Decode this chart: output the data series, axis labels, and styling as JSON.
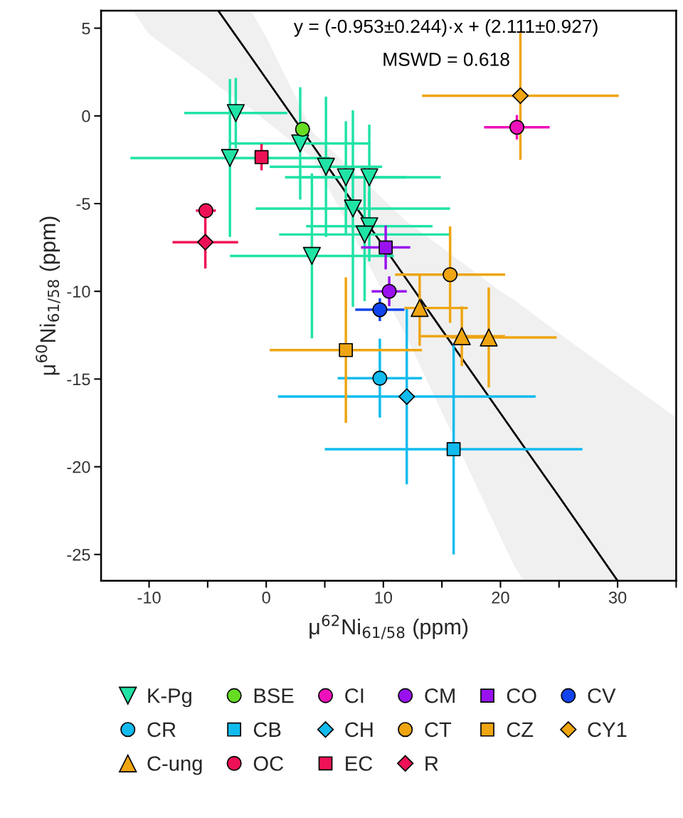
{
  "chart_data": {
    "type": "scatter",
    "xlabel": "μ$^{62}$Ni$_{61/58}$ (ppm)",
    "ylabel": "μ$^{60}$Ni$_{61/58}$ (ppm)",
    "xlim": [
      -14.1,
      35
    ],
    "ylim": [
      -26.5,
      6
    ],
    "xticks": [
      -10,
      {
        "value": -5,
        "label": null
      },
      0,
      {
        "value": 5,
        "label": null
      },
      10,
      {
        "value": 15,
        "label": null
      },
      20,
      {
        "value": 25,
        "label": null
      },
      30,
      {
        "value": 35,
        "label": null
      }
    ],
    "yticks": [
      5,
      0,
      -5,
      -10,
      -15,
      -20,
      -25
    ],
    "annotations": [
      "y = (-0.953±0.244)·x + (2.111±0.927)",
      "MSWD = 0.618"
    ],
    "grid": false,
    "legend": "bottom",
    "series": [
      {
        "type": "line",
        "color": "#000000",
        "marker": "none",
        "line_style": "solid",
        "x": [
          -11.4,
          -10,
          -5,
          -4.1,
          -1.3,
          0,
          4,
          12,
          15,
          20,
          21.2,
          22,
          25,
          30,
          35
        ],
        "values": [
          null,
          null,
          null,
          6.0,
          3.35,
          2.11,
          -1.7,
          -9.33,
          -12.2,
          -16.95,
          -18.1,
          -18.86,
          -21.7,
          -26.5,
          null
        ],
        "lower": [
          6.0,
          4.65,
          2.2,
          1.7,
          0.4,
          -0.3,
          -2.44,
          -12.64,
          -16.9,
          -24.0,
          -25.7,
          -26.5,
          -26.5,
          -26.5,
          -26.5
        ],
        "upper": [
          6.0,
          6.0,
          6.0,
          6.0,
          6.0,
          4.5,
          -0.96,
          -6.02,
          -7.5,
          -10.0,
          -10.5,
          -10.9,
          -12.4,
          -14.8,
          -17.2
        ]
      },
      {
        "name": "K-Pg",
        "color": "#20e3a6",
        "marker": "triangle_down",
        "x": [
          -2.6,
          -3.1,
          2.9,
          5.1,
          6.8,
          8.8,
          7.4,
          8.8,
          8.4,
          3.9
        ],
        "values": [
          0.16,
          -2.4,
          -1.57,
          -2.9,
          -3.5,
          -3.5,
          -5.28,
          -6.29,
          -6.76,
          -7.98
        ],
        "xerrors": [
          4.4,
          8.5,
          6.0,
          4.8,
          5.2,
          6.1,
          8.3,
          5.4,
          7.3,
          7.0
        ],
        "errors": [
          2.0,
          4.5,
          3.2,
          4.0,
          3.2,
          3.0,
          5.6,
          2.0,
          3.8,
          4.7
        ]
      },
      {
        "name": "BSE",
        "color": "#66dd22",
        "marker": "circle",
        "x": [
          3.1
        ],
        "values": [
          -0.76
        ]
      },
      {
        "name": "CI",
        "color": "#ee11bb",
        "marker": "circle",
        "x": [
          21.4
        ],
        "values": [
          -0.65
        ],
        "xerrors": [
          2.8
        ],
        "errors": [
          0.7
        ]
      },
      {
        "name": "CM",
        "color": "#9911ee",
        "marker": "circle",
        "x": [
          10.5
        ],
        "values": [
          -10.0
        ],
        "xerrors": [
          1.5
        ],
        "errors": [
          0.85
        ]
      },
      {
        "name": "CO",
        "color": "#9911ee",
        "marker": "square",
        "x": [
          10.2
        ],
        "values": [
          -7.5
        ],
        "xerrors": [
          2.1
        ],
        "errors": [
          1.25
        ]
      },
      {
        "name": "CV",
        "color": "#1144ee",
        "marker": "circle",
        "x": [
          9.7
        ],
        "values": [
          -11.05
        ],
        "xerrors": [
          2.1
        ],
        "errors": [
          0.65
        ]
      },
      {
        "name": "CR",
        "color": "#11bbee",
        "marker": "circle",
        "x": [
          9.7
        ],
        "values": [
          -14.95
        ],
        "xerrors": [
          3.6
        ],
        "errors": [
          2.25
        ]
      },
      {
        "name": "CB",
        "color": "#11bbee",
        "marker": "square",
        "x": [
          16.0
        ],
        "values": [
          -19.0
        ],
        "xerrors": [
          11.0
        ],
        "errors": [
          6.0
        ]
      },
      {
        "name": "CH",
        "color": "#11bbee",
        "marker": "diamond",
        "x": [
          12.0
        ],
        "values": [
          -16.0
        ],
        "xerrors": [
          11.0
        ],
        "errors": [
          5.0
        ]
      },
      {
        "name": "CT",
        "color": "#eea511",
        "marker": "circle",
        "x": [
          15.7
        ],
        "values": [
          -9.05
        ],
        "xerrors": [
          4.7
        ],
        "errors": [
          2.75
        ]
      },
      {
        "name": "CZ",
        "color": "#eea511",
        "marker": "square",
        "x": [
          6.8
        ],
        "values": [
          -13.35
        ],
        "xerrors": [
          6.5
        ],
        "errors": [
          4.15
        ]
      },
      {
        "name": "CY1",
        "color": "#eea511",
        "marker": "diamond",
        "x": [
          21.7
        ],
        "values": [
          1.15
        ],
        "xerrors": [
          8.4
        ],
        "errors": [
          3.65
        ]
      },
      {
        "name": "C-ung",
        "color": "#eea511",
        "marker": "triangle",
        "x": [
          13.1,
          16.7,
          19.0
        ],
        "values": [
          -10.95,
          -12.56,
          -12.63
        ],
        "xerrors": [
          [
            11.8,
            17.2
          ],
          3.7,
          [
            15.7,
            24.8
          ]
        ],
        "errors": [
          [
            -13.1,
            -9.0
          ],
          1.7,
          2.85
        ]
      },
      {
        "name": "OC",
        "color": "#ee1155",
        "marker": "circle",
        "x": [
          -5.15
        ],
        "values": [
          -5.4
        ],
        "xerrors": [
          0.85
        ],
        "errors": [
          0.3
        ]
      },
      {
        "name": "EC",
        "color": "#ee1155",
        "marker": "square",
        "x": [
          -0.4
        ],
        "values": [
          -2.35
        ],
        "xerrors": [
          null
        ],
        "errors": [
          0.75
        ]
      },
      {
        "name": "R",
        "color": "#ee1155",
        "marker": "diamond",
        "x": [
          -5.2
        ],
        "values": [
          -7.2
        ],
        "xerrors": [
          2.8
        ],
        "errors": [
          1.5
        ]
      }
    ]
  }
}
